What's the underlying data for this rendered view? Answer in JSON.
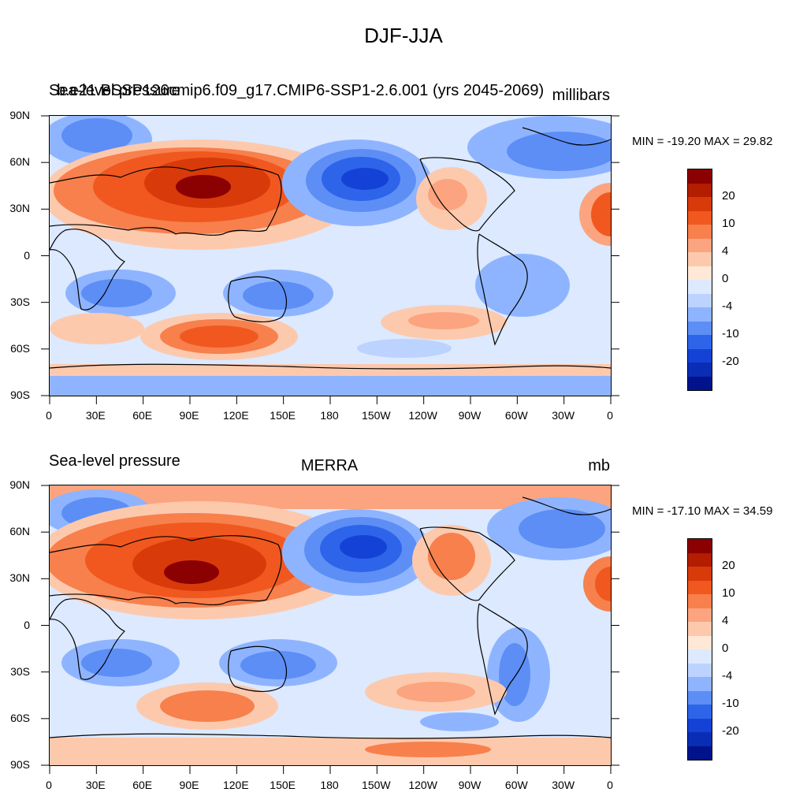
{
  "main_title": "DJF-JJA",
  "panels": [
    {
      "left_title": "Sea-level pressure",
      "left_title_overlap": "b.e21.BSSP126cmip6.f09_g17.CMIP6-SSP1-2.6.001 (yrs 2045-2069)",
      "center_title": "",
      "units": "millibars",
      "minmax": "MIN = -19.20 MAX =  29.82"
    },
    {
      "left_title": "Sea-level pressure",
      "center_title": "MERRA",
      "units": "mb",
      "minmax": "MIN = -17.10 MAX =  34.59"
    }
  ],
  "lat_labels": [
    "90N",
    "60N",
    "30N",
    "0",
    "30S",
    "60S",
    "90S"
  ],
  "lon_labels": [
    "0",
    "30E",
    "60E",
    "90E",
    "120E",
    "150E",
    "180",
    "150W",
    "120W",
    "90W",
    "60W",
    "30W",
    "0"
  ],
  "colorbar": {
    "labels": [
      "20",
      "10",
      "4",
      "0",
      "-4",
      "-10",
      "-20"
    ],
    "colors": [
      "#8b0000",
      "#b31d00",
      "#d93a0a",
      "#f0581f",
      "#f7804d",
      "#fba47f",
      "#fdc9ad",
      "#ffe8d6",
      "#dce9ff",
      "#bcd3ff",
      "#8fb4ff",
      "#5c8ef5",
      "#2e64ea",
      "#1442d6",
      "#0a2db5",
      "#00138c"
    ]
  }
}
